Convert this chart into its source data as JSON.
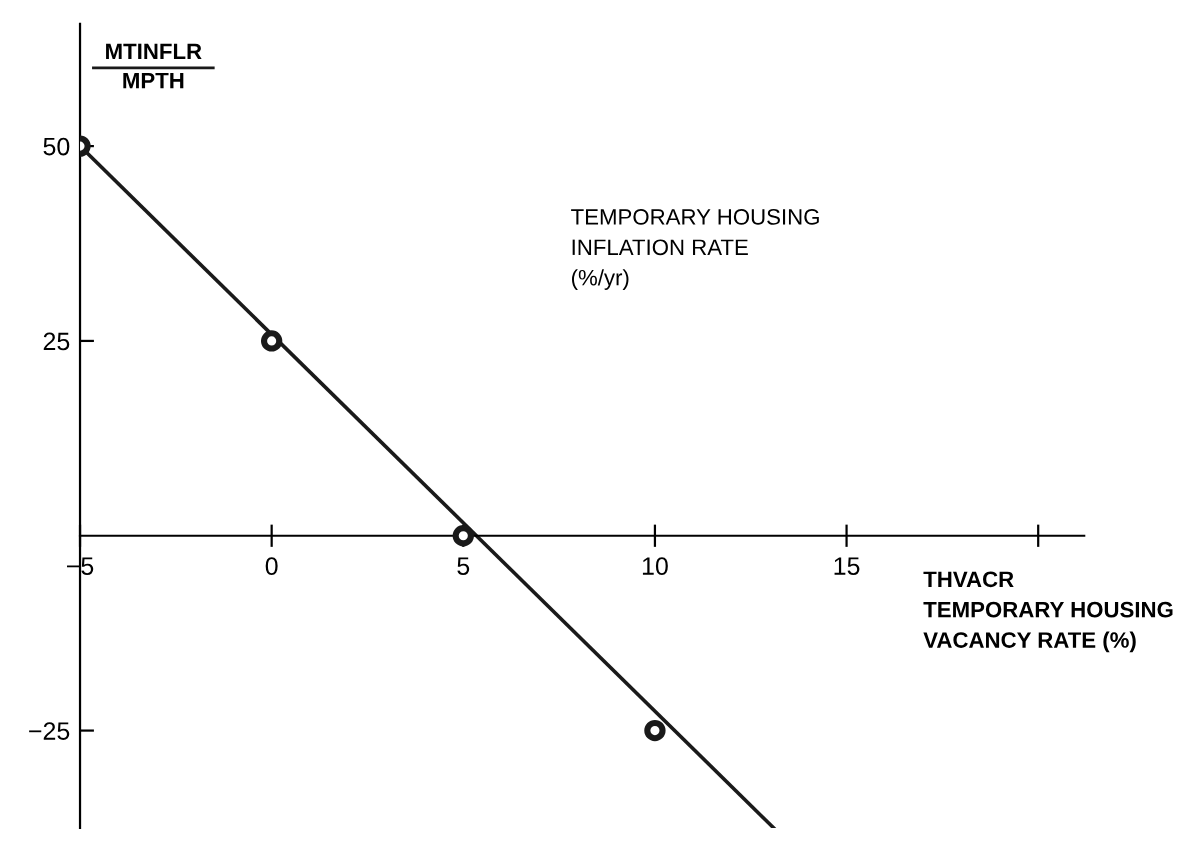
{
  "chart_data": {
    "type": "line",
    "xlabel": "THVACR\nTEMPORARY HOUSING\nVACANCY RATE (%)",
    "ylabel": "MTINFLR\nMPTH",
    "annotations": [
      "TEMPORARY HOUSING\nINFLATION RATE\n(%/yr)"
    ],
    "series": [
      {
        "color": "#1a1a1a",
        "x": [
          -5,
          13.1
        ],
        "values": [
          50,
          -37.5
        ],
        "marker": "none"
      },
      {
        "type": "scatter",
        "color": "#1a1a1a",
        "x": [
          -5,
          0,
          5,
          10
        ],
        "values": [
          50,
          25,
          0,
          -25
        ],
        "marker": "circle"
      }
    ],
    "xlim": [
      -5,
      21.2
    ],
    "ylim": [
      -37.5,
      65.7
    ],
    "xticks": [
      -5,
      0,
      5,
      10,
      15,
      {
        "value": 20,
        "label": null
      }
    ],
    "yticks": [
      -25,
      25,
      50
    ],
    "grid": false,
    "legend": false
  }
}
